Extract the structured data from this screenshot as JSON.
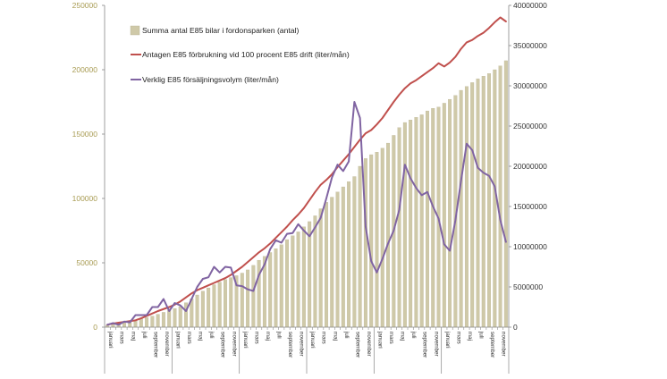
{
  "chart_data": {
    "type": "bar",
    "title": "",
    "xlabel": "",
    "ylabel": "",
    "ylim_left": [
      0,
      250000
    ],
    "ylim_right": [
      0,
      40000000
    ],
    "yticks_left": [
      "0",
      "50000",
      "100000",
      "150000",
      "200000",
      "250000"
    ],
    "yticks_right": [
      "0",
      "5000000",
      "10000000",
      "15000000",
      "20000000",
      "25000000",
      "30000000",
      "35000000",
      "40000000"
    ],
    "grid": false,
    "legend_position": "top-left",
    "colors": {
      "bars": "#cfc9a8",
      "bar_edge": "#b9b292",
      "antagen": "#c0504d",
      "verklig": "#8064a2",
      "left_axis_text": "#a89b52"
    },
    "x_labels": [
      "januari",
      "",
      "mars",
      "",
      "maj",
      "",
      "juli",
      "",
      "september",
      "",
      "november",
      "",
      "januari",
      "",
      "mars",
      "",
      "maj",
      "",
      "juli",
      "",
      "september",
      "",
      "november",
      "",
      "januari",
      "",
      "mars",
      "",
      "maj",
      "",
      "juli",
      "",
      "september",
      "",
      "november",
      "",
      "januari",
      "",
      "mars",
      "",
      "maj",
      "",
      "juli",
      "",
      "september",
      "",
      "november",
      "",
      "januari",
      "",
      "mars",
      "",
      "maj",
      "",
      "juli",
      "",
      "september",
      "",
      "november",
      "",
      "januari",
      "",
      "mars",
      "",
      "maj",
      "",
      "juli",
      "",
      "september",
      "",
      "november",
      ""
    ],
    "series": [
      {
        "name": "Summa antal E85 bilar i fordonsparken (antal)",
        "type": "bar",
        "axis": "left",
        "values": [
          1500,
          2400,
          3200,
          4000,
          4800,
          5600,
          6500,
          7400,
          8600,
          10000,
          11500,
          13000,
          14500,
          16000,
          19000,
          22000,
          25000,
          28000,
          30500,
          33000,
          35000,
          37000,
          38500,
          40000,
          42000,
          44500,
          48000,
          52000,
          55000,
          58000,
          61000,
          64000,
          68000,
          71000,
          74000,
          78000,
          82000,
          86500,
          92000,
          97000,
          101000,
          105000,
          109000,
          113000,
          117000,
          125000,
          131000,
          134000,
          136000,
          139000,
          143000,
          149000,
          155000,
          159000,
          161000,
          163000,
          165000,
          168000,
          170000,
          171000,
          174000,
          177000,
          180000,
          184000,
          187000,
          190000,
          193000,
          195000,
          197000,
          200000,
          203000,
          207000
        ]
      },
      {
        "name": "Antagen E85 förbrukning vid 100 procent E85 drift (liter/mån)",
        "type": "line",
        "axis": "right",
        "values": [
          300000,
          450000,
          550000,
          650000,
          750000,
          850000,
          1100000,
          1400000,
          1700000,
          2000000,
          2250000,
          2500000,
          2800000,
          3200000,
          3700000,
          4200000,
          4600000,
          4900000,
          5200000,
          5500000,
          5800000,
          6100000,
          6500000,
          7000000,
          7500000,
          8100000,
          8700000,
          9300000,
          9800000,
          10400000,
          11100000,
          11800000,
          12500000,
          13300000,
          14000000,
          14800000,
          15800000,
          16800000,
          17700000,
          18300000,
          19000000,
          19900000,
          20700000,
          21500000,
          22400000,
          23300000,
          24100000,
          24500000,
          25200000,
          26000000,
          27000000,
          28000000,
          28900000,
          29700000,
          30300000,
          30700000,
          31200000,
          31700000,
          32200000,
          32800000,
          32400000,
          32900000,
          33600000,
          34600000,
          35400000,
          35700000,
          36200000,
          36600000,
          37200000,
          37900000,
          38500000,
          38000000
        ]
      },
      {
        "name": "Verklig E85 försäljningsvolym (liter/mån)",
        "type": "line",
        "axis": "right",
        "values": [
          300000,
          500000,
          300000,
          700000,
          600000,
          1500000,
          1500000,
          1500000,
          2500000,
          2500000,
          3500000,
          2000000,
          3000000,
          2700000,
          2000000,
          3500000,
          5000000,
          6000000,
          6200000,
          7500000,
          6800000,
          7500000,
          7400000,
          5200000,
          5100000,
          4700000,
          4500000,
          6500000,
          7800000,
          9700000,
          10800000,
          10500000,
          11600000,
          11700000,
          12800000,
          12000000,
          11300000,
          12400000,
          13600000,
          16000000,
          18600000,
          20200000,
          19400000,
          20600000,
          28000000,
          26000000,
          12500000,
          8200000,
          6800000,
          8500000,
          10400000,
          12000000,
          14600000,
          20200000,
          18500000,
          17300000,
          16400000,
          16800000,
          15000000,
          13500000,
          10300000,
          9500000,
          13300000,
          18200000,
          22800000,
          22000000,
          19800000,
          19200000,
          18800000,
          17500000,
          13300000,
          10600000
        ]
      }
    ]
  }
}
